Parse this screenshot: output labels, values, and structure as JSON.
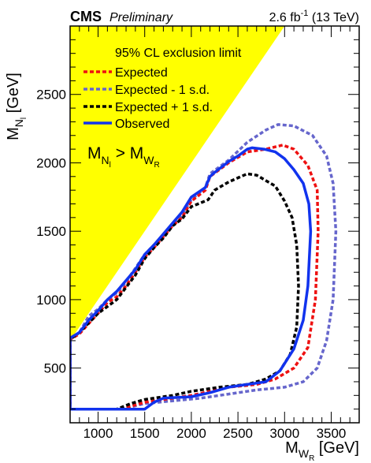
{
  "header": {
    "experiment": "CMS",
    "status": "Preliminary",
    "lumi_value": "2.6 fb",
    "lumi_exp": "-1",
    "lumi_energy": " (13 TeV)"
  },
  "region_label": {
    "left": "M",
    "left_sub": "N",
    "left_subsub": "l",
    "op": " > M",
    "right_sub": "W",
    "right_subsub": "R"
  },
  "colors": {
    "excluded_region": "#ffff00",
    "expected": "#ee1111",
    "expected_minus": "#6666cc",
    "expected_plus": "#000000",
    "observed": "#1133ee"
  },
  "chart_data": {
    "type": "line",
    "title": "",
    "xlabel": "M",
    "xlabel_sub": "W",
    "xlabel_subsub": "R",
    "xlabel_unit": " [GeV]",
    "ylabel": "M",
    "ylabel_sub": "N",
    "ylabel_subsub": "l",
    "ylabel_unit": " [GeV]",
    "xlim": [
      700,
      3800
    ],
    "ylim": [
      100,
      3000
    ],
    "xticks": [
      1000,
      1500,
      2000,
      2500,
      3000,
      3500
    ],
    "yticks": [
      500,
      1000,
      1500,
      2000,
      2500
    ],
    "grid": false,
    "legend_title": "95% CL exclusion limit",
    "legend_position": "top-left",
    "excluded_region": {
      "label": "M_N > M_WR",
      "points": [
        [
          700,
          700
        ],
        [
          700,
          3000
        ],
        [
          3000,
          3000
        ]
      ]
    },
    "series": [
      {
        "name": "Expected",
        "style": "dashed",
        "points": [
          [
            700,
            200
          ],
          [
            1250,
            200
          ],
          [
            1500,
            250
          ],
          [
            1800,
            280
          ],
          [
            2000,
            300
          ],
          [
            2200,
            330
          ],
          [
            2400,
            360
          ],
          [
            2700,
            380
          ],
          [
            2900,
            420
          ],
          [
            3100,
            500
          ],
          [
            3250,
            650
          ],
          [
            3330,
            1000
          ],
          [
            3360,
            1500
          ],
          [
            3350,
            1800
          ],
          [
            3250,
            1980
          ],
          [
            3100,
            2100
          ],
          [
            2980,
            2130
          ],
          [
            2800,
            2100
          ],
          [
            2600,
            2080
          ],
          [
            2400,
            2000
          ],
          [
            2200,
            1900
          ],
          [
            2150,
            1800
          ],
          [
            2000,
            1720
          ],
          [
            1900,
            1600
          ],
          [
            1800,
            1540
          ],
          [
            1700,
            1460
          ],
          [
            1600,
            1380
          ],
          [
            1500,
            1310
          ],
          [
            1400,
            1200
          ],
          [
            1300,
            1100
          ],
          [
            1200,
            1020
          ],
          [
            1100,
            980
          ],
          [
            1000,
            900
          ],
          [
            800,
            750
          ],
          [
            700,
            710
          ],
          [
            700,
            200
          ]
        ]
      },
      {
        "name": "Expected - 1 s.d.",
        "style": "dashed",
        "points": [
          [
            700,
            200
          ],
          [
            1250,
            200
          ],
          [
            1500,
            240
          ],
          [
            1800,
            260
          ],
          [
            2100,
            280
          ],
          [
            2400,
            310
          ],
          [
            2700,
            340
          ],
          [
            3000,
            360
          ],
          [
            3200,
            400
          ],
          [
            3350,
            500
          ],
          [
            3450,
            700
          ],
          [
            3520,
            1000
          ],
          [
            3550,
            1500
          ],
          [
            3520,
            1850
          ],
          [
            3450,
            2050
          ],
          [
            3300,
            2200
          ],
          [
            3100,
            2270
          ],
          [
            2930,
            2280
          ],
          [
            2800,
            2240
          ],
          [
            2600,
            2150
          ],
          [
            2400,
            2020
          ],
          [
            2200,
            1920
          ],
          [
            2150,
            1820
          ],
          [
            2000,
            1730
          ],
          [
            1900,
            1620
          ],
          [
            1800,
            1550
          ],
          [
            1700,
            1470
          ],
          [
            1600,
            1400
          ],
          [
            1500,
            1330
          ],
          [
            1400,
            1230
          ],
          [
            1300,
            1130
          ],
          [
            1200,
            1050
          ],
          [
            1100,
            1000
          ],
          [
            1000,
            930
          ],
          [
            900,
            880
          ],
          [
            800,
            760
          ],
          [
            700,
            710
          ],
          [
            700,
            200
          ]
        ]
      },
      {
        "name": "Expected + 1 s.d.",
        "style": "dashed",
        "points": [
          [
            700,
            200
          ],
          [
            1200,
            200
          ],
          [
            1350,
            240
          ],
          [
            1500,
            270
          ],
          [
            1800,
            300
          ],
          [
            2000,
            330
          ],
          [
            2300,
            360
          ],
          [
            2600,
            380
          ],
          [
            2800,
            420
          ],
          [
            2950,
            480
          ],
          [
            3060,
            600
          ],
          [
            3130,
            800
          ],
          [
            3150,
            1100
          ],
          [
            3130,
            1400
          ],
          [
            3080,
            1600
          ],
          [
            3000,
            1720
          ],
          [
            2900,
            1830
          ],
          [
            2700,
            1910
          ],
          [
            2600,
            1920
          ],
          [
            2400,
            1860
          ],
          [
            2250,
            1800
          ],
          [
            2180,
            1730
          ],
          [
            2000,
            1680
          ],
          [
            1900,
            1590
          ],
          [
            1800,
            1540
          ],
          [
            1700,
            1450
          ],
          [
            1600,
            1380
          ],
          [
            1500,
            1300
          ],
          [
            1400,
            1180
          ],
          [
            1300,
            1090
          ],
          [
            1200,
            1000
          ],
          [
            1100,
            950
          ],
          [
            1000,
            900
          ],
          [
            800,
            760
          ],
          [
            700,
            710
          ],
          [
            700,
            200
          ]
        ]
      },
      {
        "name": "Observed",
        "style": "solid",
        "points": [
          [
            700,
            200
          ],
          [
            1500,
            200
          ],
          [
            1600,
            250
          ],
          [
            1700,
            280
          ],
          [
            2000,
            290
          ],
          [
            2200,
            320
          ],
          [
            2400,
            360
          ],
          [
            2600,
            380
          ],
          [
            2800,
            400
          ],
          [
            2950,
            480
          ],
          [
            3100,
            640
          ],
          [
            3200,
            850
          ],
          [
            3250,
            1100
          ],
          [
            3280,
            1500
          ],
          [
            3260,
            1700
          ],
          [
            3200,
            1850
          ],
          [
            3100,
            1950
          ],
          [
            3000,
            2030
          ],
          [
            2900,
            2080
          ],
          [
            2780,
            2100
          ],
          [
            2650,
            2110
          ],
          [
            2600,
            2100
          ],
          [
            2500,
            2050
          ],
          [
            2400,
            2010
          ],
          [
            2250,
            1930
          ],
          [
            2200,
            1900
          ],
          [
            2150,
            1820
          ],
          [
            2000,
            1750
          ],
          [
            1900,
            1640
          ],
          [
            1800,
            1560
          ],
          [
            1700,
            1480
          ],
          [
            1600,
            1400
          ],
          [
            1500,
            1330
          ],
          [
            1400,
            1220
          ],
          [
            1300,
            1140
          ],
          [
            1200,
            1060
          ],
          [
            1100,
            1000
          ],
          [
            1000,
            920
          ],
          [
            900,
            850
          ],
          [
            800,
            760
          ],
          [
            700,
            720
          ],
          [
            700,
            200
          ]
        ]
      }
    ]
  }
}
